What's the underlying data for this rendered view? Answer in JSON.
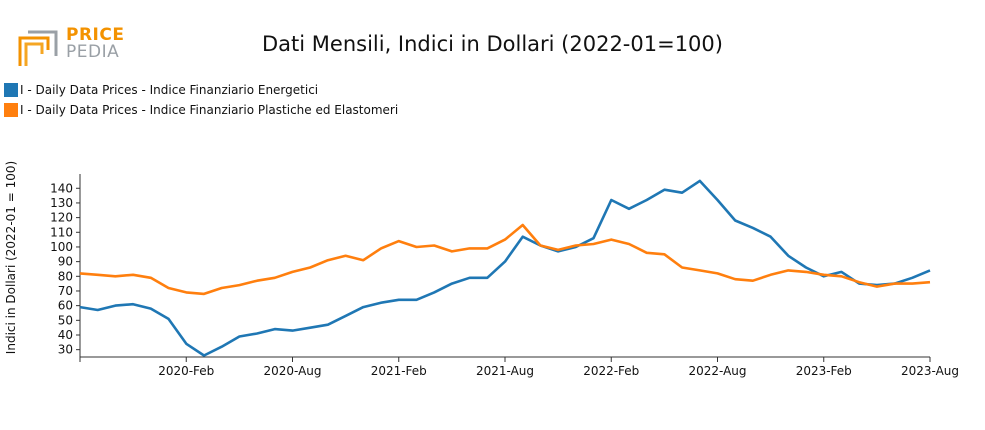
{
  "logo": {
    "word1": "PRICE",
    "word2": "PEDIA"
  },
  "chart_data": {
    "type": "line",
    "title": "Dati Mensili, Indici in Dollari (2022-01=100)",
    "ylabel": "Indici in Dollari (2022-01 = 100)",
    "xlabel": "",
    "ylim": [
      25,
      147
    ],
    "yticks": [
      30,
      40,
      50,
      60,
      70,
      80,
      90,
      100,
      110,
      120,
      130,
      140
    ],
    "xticks": [
      "2020-Feb",
      "2020-Aug",
      "2021-Feb",
      "2021-Aug",
      "2022-Feb",
      "2022-Aug",
      "2023-Feb",
      "2023-Aug"
    ],
    "x": [
      "2019-08",
      "2019-09",
      "2019-10",
      "2019-11",
      "2019-12",
      "2020-01",
      "2020-02",
      "2020-03",
      "2020-04",
      "2020-05",
      "2020-06",
      "2020-07",
      "2020-08",
      "2020-09",
      "2020-10",
      "2020-11",
      "2020-12",
      "2021-01",
      "2021-02",
      "2021-03",
      "2021-04",
      "2021-05",
      "2021-06",
      "2021-07",
      "2021-08",
      "2021-09",
      "2021-10",
      "2021-11",
      "2021-12",
      "2022-01",
      "2022-02",
      "2022-03",
      "2022-04",
      "2022-05",
      "2022-06",
      "2022-07",
      "2022-08",
      "2022-09",
      "2022-10",
      "2022-11",
      "2022-12",
      "2023-01",
      "2023-02",
      "2023-03",
      "2023-04",
      "2023-05",
      "2023-06",
      "2023-07",
      "2023-08"
    ],
    "legend_position": "top-left",
    "grid": false,
    "series": [
      {
        "name": "I - Daily Data Prices - Indice Finanziario Energetici",
        "color": "#1f77b4",
        "values": [
          59,
          57,
          60,
          61,
          58,
          51,
          34,
          26,
          32,
          39,
          41,
          44,
          43,
          45,
          47,
          53,
          59,
          62,
          64,
          64,
          69,
          75,
          79,
          79,
          90,
          107,
          101,
          97,
          100,
          106,
          132,
          126,
          132,
          139,
          137,
          145,
          132,
          118,
          113,
          107,
          94,
          86,
          80,
          83,
          75,
          74,
          75,
          79,
          84
        ]
      },
      {
        "name": "I - Daily Data Prices - Indice Finanziario Plastiche ed Elastomeri",
        "color": "#ff7f0e",
        "values": [
          82,
          81,
          80,
          81,
          79,
          72,
          69,
          68,
          72,
          74,
          77,
          79,
          83,
          86,
          91,
          94,
          91,
          99,
          104,
          100,
          101,
          97,
          99,
          99,
          105,
          115,
          101,
          98,
          101,
          102,
          105,
          102,
          96,
          95,
          86,
          84,
          82,
          78,
          77,
          81,
          84,
          83,
          81,
          80,
          76,
          73,
          75,
          75,
          76
        ]
      }
    ]
  }
}
